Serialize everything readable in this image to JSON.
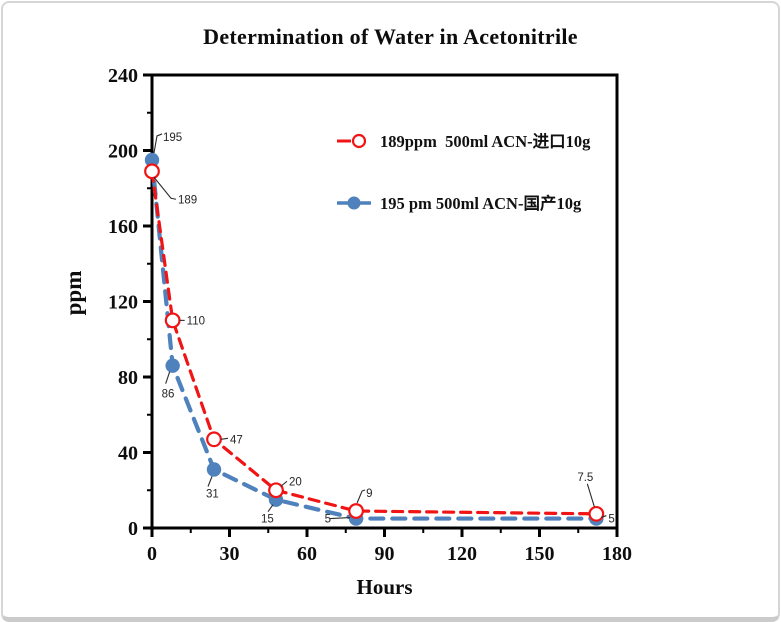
{
  "title": "Determination of Water in Acetonitrile",
  "colors": {
    "red_series": "#f01414",
    "blue_series": "#4f81bd",
    "axis": "#000000",
    "annotation": "#2b2b2b",
    "frame_border": "#d6d6d6"
  },
  "legend": [
    {
      "label": "189ppm  500ml ACN-进口10g",
      "marker": "dash-open-circle",
      "color": "#f01414"
    },
    {
      "label": "195 pm 500ml ACN-国产10g",
      "label_full": "195 ppm 500ml ACN-国产10g",
      "marker": "dash-filled-circle",
      "color": "#4f81bd"
    }
  ],
  "chart_data": {
    "type": "line",
    "title": "Determination of Water in Acetonitrile",
    "xlabel": "Hours",
    "ylabel": "ppm",
    "xlim": [
      0,
      180
    ],
    "ylim": [
      0,
      240
    ],
    "x_major_ticks": [
      0,
      30,
      60,
      90,
      120,
      150,
      180
    ],
    "x_minor_ticks": [
      15,
      45,
      75,
      105,
      135,
      165
    ],
    "y_major_ticks": [
      0,
      40,
      80,
      120,
      160,
      200,
      240
    ],
    "y_minor_ticks": [
      20,
      60,
      100,
      140,
      180,
      220
    ],
    "grid": false,
    "legend_position": "inside-top-right",
    "series": [
      {
        "name": "195 ppm 500ml ACN-国产10g",
        "color": "#4f81bd",
        "line_style": "dashed",
        "marker": "filled-circle",
        "x": [
          0,
          8,
          24,
          48,
          79,
          172
        ],
        "values": [
          195,
          86,
          31,
          15,
          5,
          5
        ],
        "points": [
          {
            "x": 0,
            "y": 195,
            "label": "195",
            "ldx": 11,
            "ldy": -19,
            "anchor": "start",
            "leader": [
              [
                2,
                -7
              ],
              [
                5,
                -24
              ],
              [
                10,
                -26
              ]
            ]
          },
          {
            "x": 8,
            "y": 86,
            "label": "86",
            "ldx": -11,
            "ldy": 32,
            "anchor": "start",
            "leader": [
              [
                -3,
                6
              ],
              [
                -7,
                18
              ]
            ]
          },
          {
            "x": 24,
            "y": 31,
            "label": "31",
            "ldx": -8,
            "ldy": 28,
            "anchor": "start",
            "leader": [
              [
                -2,
                7
              ],
              [
                -6,
                17
              ]
            ]
          },
          {
            "x": 48,
            "y": 15,
            "label": "15",
            "ldx": -15,
            "ldy": 23,
            "anchor": "start",
            "leader": [
              [
                -3,
                5
              ],
              [
                -8,
                12
              ]
            ]
          },
          {
            "x": 79,
            "y": 5,
            "label": "5",
            "ldx": -25,
            "ldy": 4,
            "anchor": "end",
            "leader": [
              [
                -26,
                0
              ],
              [
                -6,
                -1
              ]
            ]
          },
          {
            "x": 172,
            "y": 5,
            "label": "5",
            "ldx": 12,
            "ldy": 4,
            "anchor": "start",
            "leader": [
              [
                5,
                -1
              ],
              [
                10,
                -3
              ]
            ]
          }
        ]
      },
      {
        "name": "189ppm  500ml ACN-进口10g",
        "color": "#f01414",
        "line_style": "dashed",
        "marker": "open-circle",
        "x": [
          0,
          8,
          24,
          48,
          79,
          172
        ],
        "values": [
          189,
          110,
          47,
          20,
          9,
          7.5
        ],
        "points": [
          {
            "x": 0,
            "y": 189,
            "label": "189",
            "ldx": 26,
            "ldy": 32,
            "anchor": "start",
            "leader": [
              [
                2,
                6
              ],
              [
                19,
                27
              ],
              [
                24,
                28
              ]
            ]
          },
          {
            "x": 8,
            "y": 110,
            "label": "110",
            "ldx": 14,
            "ldy": 4,
            "anchor": "start",
            "leader": [
              [
                7,
                0
              ],
              [
                12,
                0
              ]
            ]
          },
          {
            "x": 24,
            "y": 47,
            "label": "47",
            "ldx": 16,
            "ldy": 4,
            "anchor": "start",
            "leader": [
              [
                7,
                0
              ],
              [
                14,
                -1
              ]
            ]
          },
          {
            "x": 48,
            "y": 20,
            "label": "20",
            "ldx": 13,
            "ldy": -5,
            "anchor": "start",
            "leader": [
              [
                5,
                -4
              ],
              [
                11,
                -9
              ]
            ]
          },
          {
            "x": 79,
            "y": 9,
            "label": "9",
            "ldx": 10,
            "ldy": -14,
            "anchor": "start",
            "leader": [
              [
                1,
                -8
              ],
              [
                6,
                -20
              ],
              [
                9,
                -21
              ]
            ]
          },
          {
            "x": 172,
            "y": 7.5,
            "label": "7.5",
            "ldx": -19,
            "ldy": -33,
            "anchor": "start",
            "leader": [
              [
                -2,
                -7
              ],
              [
                -9,
                -30
              ]
            ]
          }
        ]
      }
    ]
  }
}
